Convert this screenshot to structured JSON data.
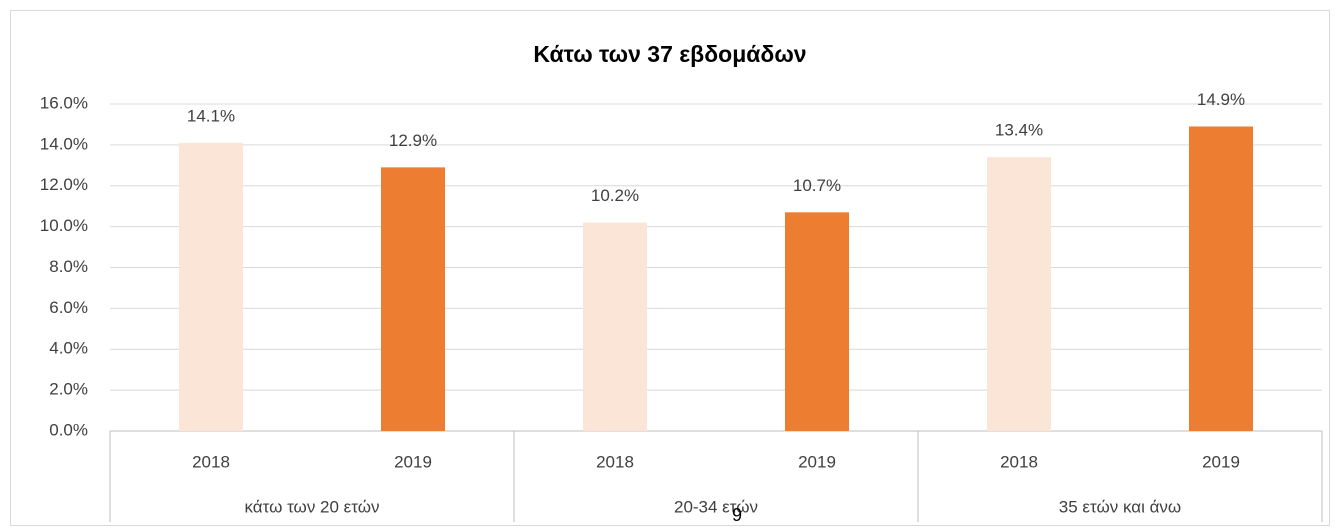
{
  "chart_data": {
    "type": "bar",
    "title": "Κάτω των 37 εβδομάδων",
    "groups": [
      {
        "name": "κάτω των 20 ετών",
        "categories": [
          "2018",
          "2019"
        ],
        "values": [
          14.1,
          12.9
        ],
        "value_labels": [
          "14.1%",
          "12.9%"
        ]
      },
      {
        "name": "20-34 ετών",
        "categories": [
          "2018",
          "2019"
        ],
        "values": [
          10.2,
          10.7
        ],
        "value_labels": [
          "10.2%",
          "10.7%"
        ]
      },
      {
        "name": "35 ετών και άνω",
        "categories": [
          "2018",
          "2019"
        ],
        "values": [
          13.4,
          14.9
        ],
        "value_labels": [
          "13.4%",
          "14.9%"
        ]
      }
    ],
    "colors": [
      "#fbe5d6",
      "#ed7d31"
    ],
    "ylim": [
      0,
      16
    ],
    "yticks": [
      {
        "value": 0,
        "label": "0.0%"
      },
      {
        "value": 2,
        "label": "2.0%"
      },
      {
        "value": 4,
        "label": "4.0%"
      },
      {
        "value": 6,
        "label": "6.0%"
      },
      {
        "value": 8,
        "label": "8.0%"
      },
      {
        "value": 10,
        "label": "10.0%"
      },
      {
        "value": 12,
        "label": "12.0%"
      },
      {
        "value": 14,
        "label": "14.0%"
      },
      {
        "value": 16,
        "label": "16.0%"
      }
    ],
    "grid": true
  },
  "page_number": "9"
}
